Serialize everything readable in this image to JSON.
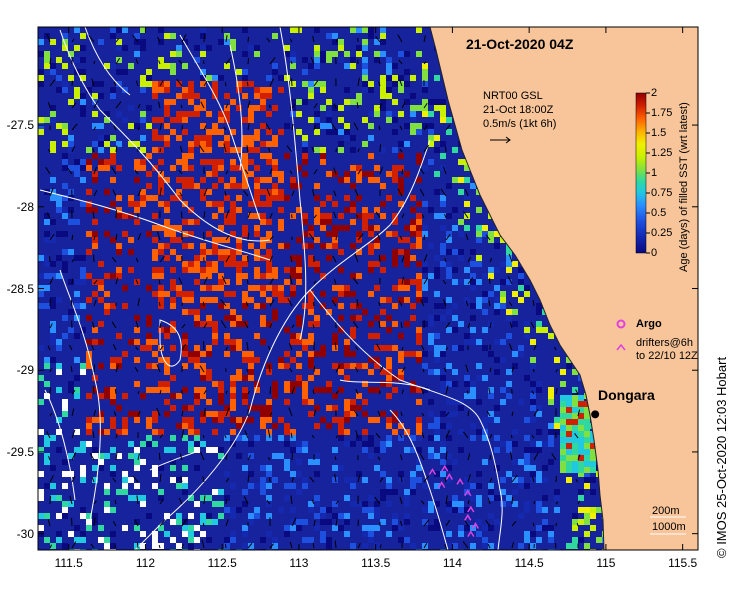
{
  "title": "21-Oct-2020 04Z",
  "colors": {
    "land": "#f8c59a",
    "ocean_base": "#16239c",
    "argo_marker": "#e040e0",
    "drifter_marker": "#e040e0",
    "contour": "#ffffff",
    "colorbar": [
      "#0a0a80",
      "#1428b0",
      "#1e50e0",
      "#2a90ff",
      "#20c8e0",
      "#30d8a0",
      "#80e040",
      "#c8f000",
      "#f0f000",
      "#ffb000",
      "#ff6000",
      "#d02000",
      "#900000"
    ]
  },
  "axes": {
    "x_ticks": [
      "111.5",
      "112",
      "112.5",
      "113",
      "113.5",
      "114",
      "114.5",
      "115",
      "115.5"
    ],
    "y_ticks": [
      "-27.5",
      "-28",
      "-28.5",
      "-29",
      "-29.5",
      "-30"
    ],
    "lon_range": [
      111.3,
      115.6
    ],
    "lat_range": [
      -30.1,
      -26.9
    ]
  },
  "colorbar": {
    "label": "Age (days) of filled SST (wrt latest)",
    "ticks": [
      "2",
      "1.75",
      "1.5",
      "1.25",
      "1",
      "0.75",
      "0.5",
      "0.25",
      "0"
    ],
    "min": 0,
    "max": 2
  },
  "current_legend": {
    "line1": "NRT00 GSL",
    "line2": "21-Oct 18:00Z",
    "line3": "0.5m/s (1kt 6h)"
  },
  "argo_legend": {
    "label": "Argo",
    "drifters_line1": "drifters@6h",
    "drifters_line2": "to 22/10 12Z"
  },
  "city": {
    "name": "Dongara",
    "lon": 114.93,
    "lat": -29.27
  },
  "contours": {
    "line1": "200m",
    "line2": "1000m"
  },
  "copyright": "©  IMOS 25-Oct-2020 12:03 Hobart",
  "data_points": {
    "drifters": [
      {
        "lon": 113.87,
        "lat": -29.62
      },
      {
        "lon": 113.95,
        "lat": -29.6
      },
      {
        "lon": 113.98,
        "lat": -29.65
      },
      {
        "lon": 113.93,
        "lat": -29.7
      },
      {
        "lon": 114.05,
        "lat": -29.68
      },
      {
        "lon": 114.1,
        "lat": -29.75
      },
      {
        "lon": 114.12,
        "lat": -29.85
      },
      {
        "lon": 114.15,
        "lat": -29.95
      },
      {
        "lon": 114.1,
        "lat": -29.9
      },
      {
        "lon": 114.12,
        "lat": -30.0
      }
    ]
  }
}
